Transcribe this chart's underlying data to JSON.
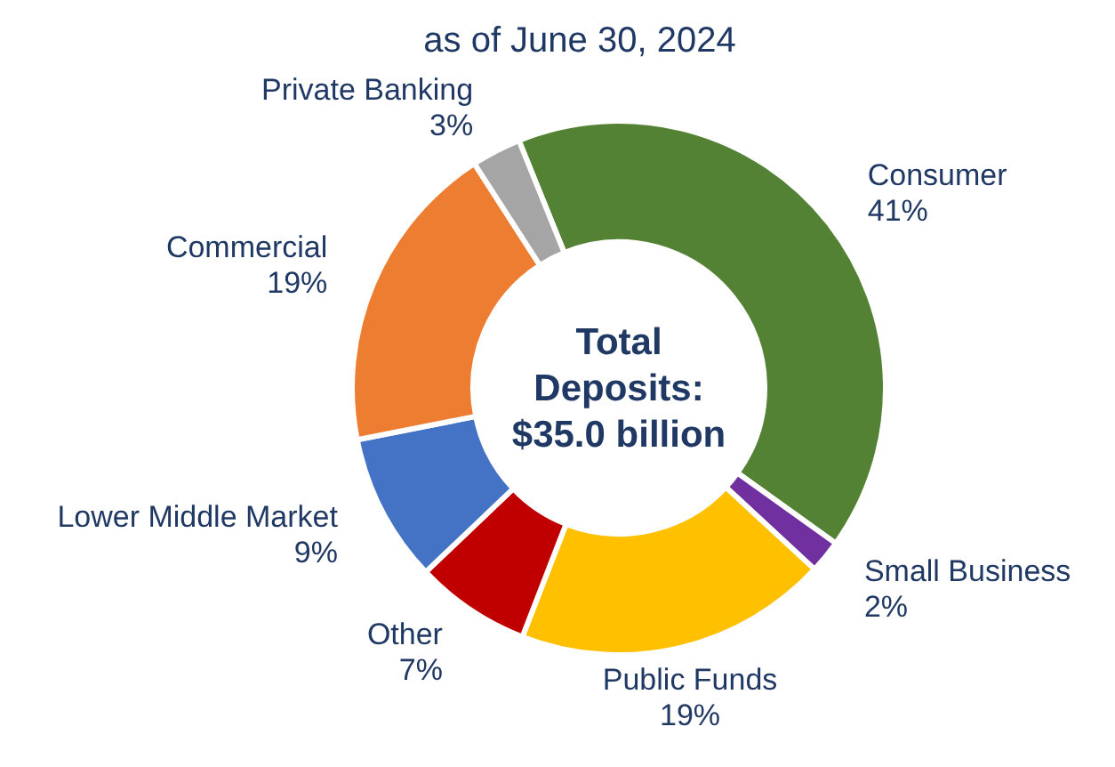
{
  "chart_data": {
    "type": "donut",
    "title": "as of June 30, 2024",
    "categories": [
      "Consumer",
      "Small Business",
      "Public Funds",
      "Other",
      "Lower Middle Market",
      "Commercial",
      "Private Banking"
    ],
    "values": [
      41,
      2,
      19,
      7,
      9,
      19,
      3
    ],
    "value_labels": [
      "41%",
      "2%",
      "19%",
      "7%",
      "9%",
      "19%",
      "3%"
    ],
    "colors": [
      "#548235",
      "#7030a0",
      "#ffc000",
      "#c00000",
      "#4472c4",
      "#ed7d31",
      "#a5a5a5"
    ],
    "annotations": [
      "Total\nDeposits:\n$35.0 billion"
    ],
    "legend": false
  }
}
